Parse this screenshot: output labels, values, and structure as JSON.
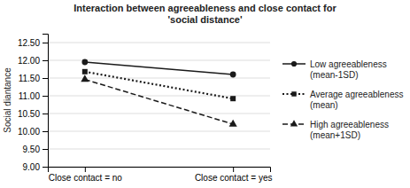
{
  "chart_data": {
    "type": "line",
    "title": "Interaction between agreeableness and close contact for\n'social distance'",
    "y_label": "Social diantance",
    "categories": [
      "Close contact = no",
      "Close contact = yes"
    ],
    "series": [
      {
        "name": "Low agreeableness\n(mean-1SD)",
        "values": [
          11.95,
          11.6
        ],
        "marker": "circle",
        "line_style": "solid"
      },
      {
        "name": "Average agreeableness\n(mean)",
        "values": [
          11.68,
          10.92
        ],
        "marker": "square",
        "line_style": "dotted"
      },
      {
        "name": "High agreeableness\n(mean+1SD)",
        "values": [
          11.46,
          10.2
        ],
        "marker": "triangle",
        "line_style": "dashed"
      }
    ],
    "color": "#1a1a1a",
    "ylim": [
      9.0,
      12.75
    ],
    "yticks": [
      {
        "value": 9.0,
        "label": "9.00"
      },
      {
        "value": 9.5,
        "label": "9.50"
      },
      {
        "value": 10.0,
        "label": "10.00"
      },
      {
        "value": 10.5,
        "label": "10.50"
      },
      {
        "value": 11.0,
        "label": "11.00"
      },
      {
        "value": 11.5,
        "label": "11.50"
      },
      {
        "value": 12.0,
        "label": "12.00"
      },
      {
        "value": 12.5,
        "label": "12.50"
      }
    ],
    "grid": true,
    "legend": "right"
  }
}
